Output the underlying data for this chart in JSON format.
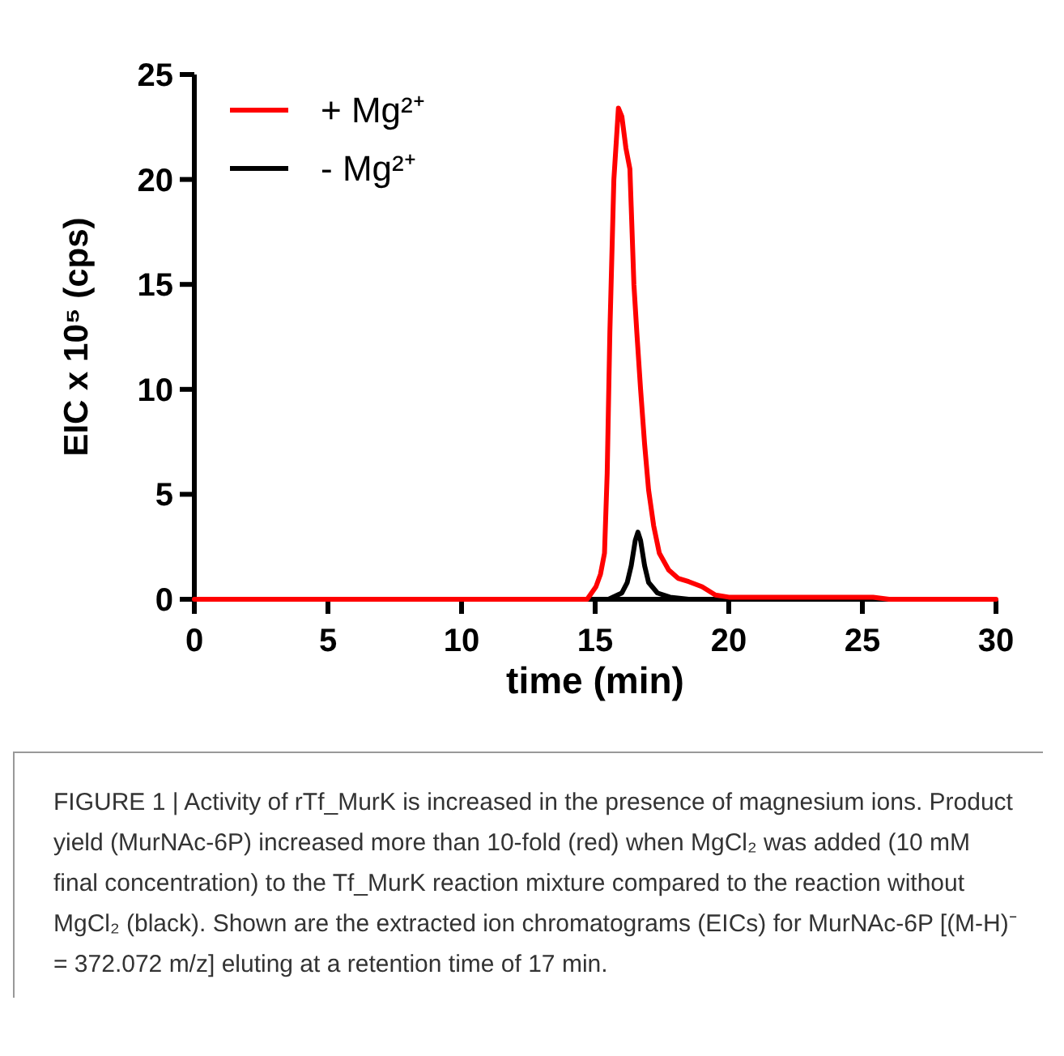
{
  "chart_data": {
    "type": "line",
    "xlabel": "time (min)",
    "ylabel": "EIC  x 10⁵  (cps)",
    "xlim": [
      0,
      30
    ],
    "ylim": [
      0,
      25
    ],
    "xticks": [
      0,
      5,
      10,
      15,
      20,
      25,
      30
    ],
    "yticks": [
      0,
      5,
      10,
      15,
      20,
      25
    ],
    "legend": "top left",
    "grid": false,
    "marker": "none",
    "line_style": "solid",
    "series": [
      {
        "name": "+ Mg²⁺",
        "color": "#ff0000",
        "x": [
          0,
          5,
          10,
          14.7,
          15.03,
          15.2,
          15.35,
          15.45,
          15.55,
          15.7,
          15.87,
          16.0,
          16.15,
          16.3,
          16.45,
          16.56,
          16.7,
          16.85,
          17.0,
          17.19,
          17.4,
          17.75,
          18.1,
          18.5,
          19.0,
          19.5,
          20,
          22,
          25.4,
          26,
          30
        ],
        "values": [
          0,
          0,
          0,
          0,
          0.6,
          1.2,
          2.2,
          6,
          12.7,
          20,
          23.4,
          23,
          21.5,
          20.5,
          15,
          12.7,
          10,
          7.4,
          5.2,
          3.5,
          2.2,
          1.4,
          1.0,
          0.84,
          0.6,
          0.2,
          0.1,
          0.1,
          0.1,
          0,
          0
        ]
      },
      {
        "name": "- Mg²⁺",
        "color": "#000000",
        "x": [
          15.5,
          16.0,
          16.2,
          16.35,
          16.5,
          16.6,
          16.7,
          16.85,
          17.0,
          17.33,
          17.8,
          18.5
        ],
        "values": [
          0,
          0.3,
          0.8,
          1.6,
          2.8,
          3.2,
          2.8,
          1.6,
          0.8,
          0.3,
          0.1,
          0
        ]
      }
    ],
    "annotations": [
      "FIGURE 1 | Activity of rTf_MurK is increased in the presence of magnesium ions. Product yield (MurNAc-6P) increased more than 10-fold (red) when MgCl₂ was added (10 mM final concentration) to the Tf_MurK reaction mixture compared to the reaction without MgCl₂ (black). Shown are the extracted ion chromatograms (EICs) for MurNAc-6P [(M-H)⁻ = 372.072 m/z] eluting at a retention time of 17 min."
    ]
  }
}
